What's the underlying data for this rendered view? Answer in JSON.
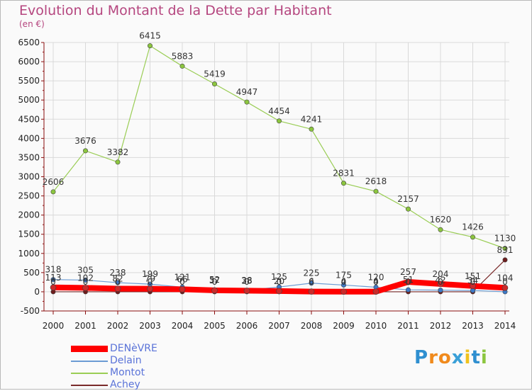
{
  "title": "Evolution du Montant de la Dette par Habitant",
  "unit": "(en €)",
  "logo": "Proxiti",
  "colors": {
    "title": "#b5467f",
    "axis": "#8a0f0f",
    "grid": "#d9d9d9",
    "legend_text": "#5a73d8"
  },
  "chart_data": {
    "type": "line",
    "x": [
      2000,
      2001,
      2002,
      2003,
      2004,
      2005,
      2006,
      2007,
      2008,
      2009,
      2010,
      2011,
      2012,
      2013,
      2014
    ],
    "y_ticks": [
      -500,
      0,
      500,
      1000,
      1500,
      2000,
      2500,
      3000,
      3500,
      4000,
      4500,
      5000,
      5500,
      6000,
      6500
    ],
    "ylim": [
      -500,
      6500
    ],
    "grid": true,
    "legend_position": "bottom-left",
    "series": [
      {
        "name": "DENèVRE",
        "color": "#ff0000",
        "values": [
          113,
          102,
          82,
          79,
          66,
          37,
          28,
          20,
          6,
          4,
          4,
          257,
          204,
          151,
          104
        ],
        "labels": [
          "113",
          "102",
          "82",
          "79",
          "66",
          "37",
          "28",
          "20",
          "6",
          "4",
          "4",
          "257",
          "204",
          "151",
          "104"
        ]
      },
      {
        "name": "Delain",
        "color": "#6b9bd3",
        "values": [
          318,
          305,
          238,
          199,
          121,
          52,
          38,
          125,
          225,
          175,
          120,
          51,
          42,
          34,
          0
        ],
        "labels": [
          "318",
          "305",
          "238",
          "199",
          "121",
          "52",
          "38",
          "125",
          "225",
          "175",
          "120",
          "51",
          "42",
          "34",
          "0"
        ]
      },
      {
        "name": "Montot",
        "color": "#9acd55",
        "values": [
          2606,
          3676,
          3382,
          6415,
          5883,
          5419,
          4947,
          4454,
          4241,
          2831,
          2618,
          2157,
          1620,
          1426,
          1130
        ],
        "labels": [
          "2606",
          "3676",
          "3382",
          "6415",
          "5883",
          "5419",
          "4947",
          "4454",
          "4241",
          "2831",
          "2618",
          "2157",
          "1620",
          "1426",
          "1130"
        ]
      },
      {
        "name": "Achey",
        "color": "#7a2b2b",
        "values": [
          0,
          0,
          0,
          0,
          0,
          0,
          0,
          0,
          0,
          0,
          0,
          0,
          0,
          0,
          831
        ],
        "labels": [
          "0",
          "0",
          "0",
          "0",
          "0",
          "0",
          "0",
          "0",
          "0",
          "0",
          "0",
          "0",
          "0",
          "0",
          "831"
        ]
      }
    ]
  }
}
